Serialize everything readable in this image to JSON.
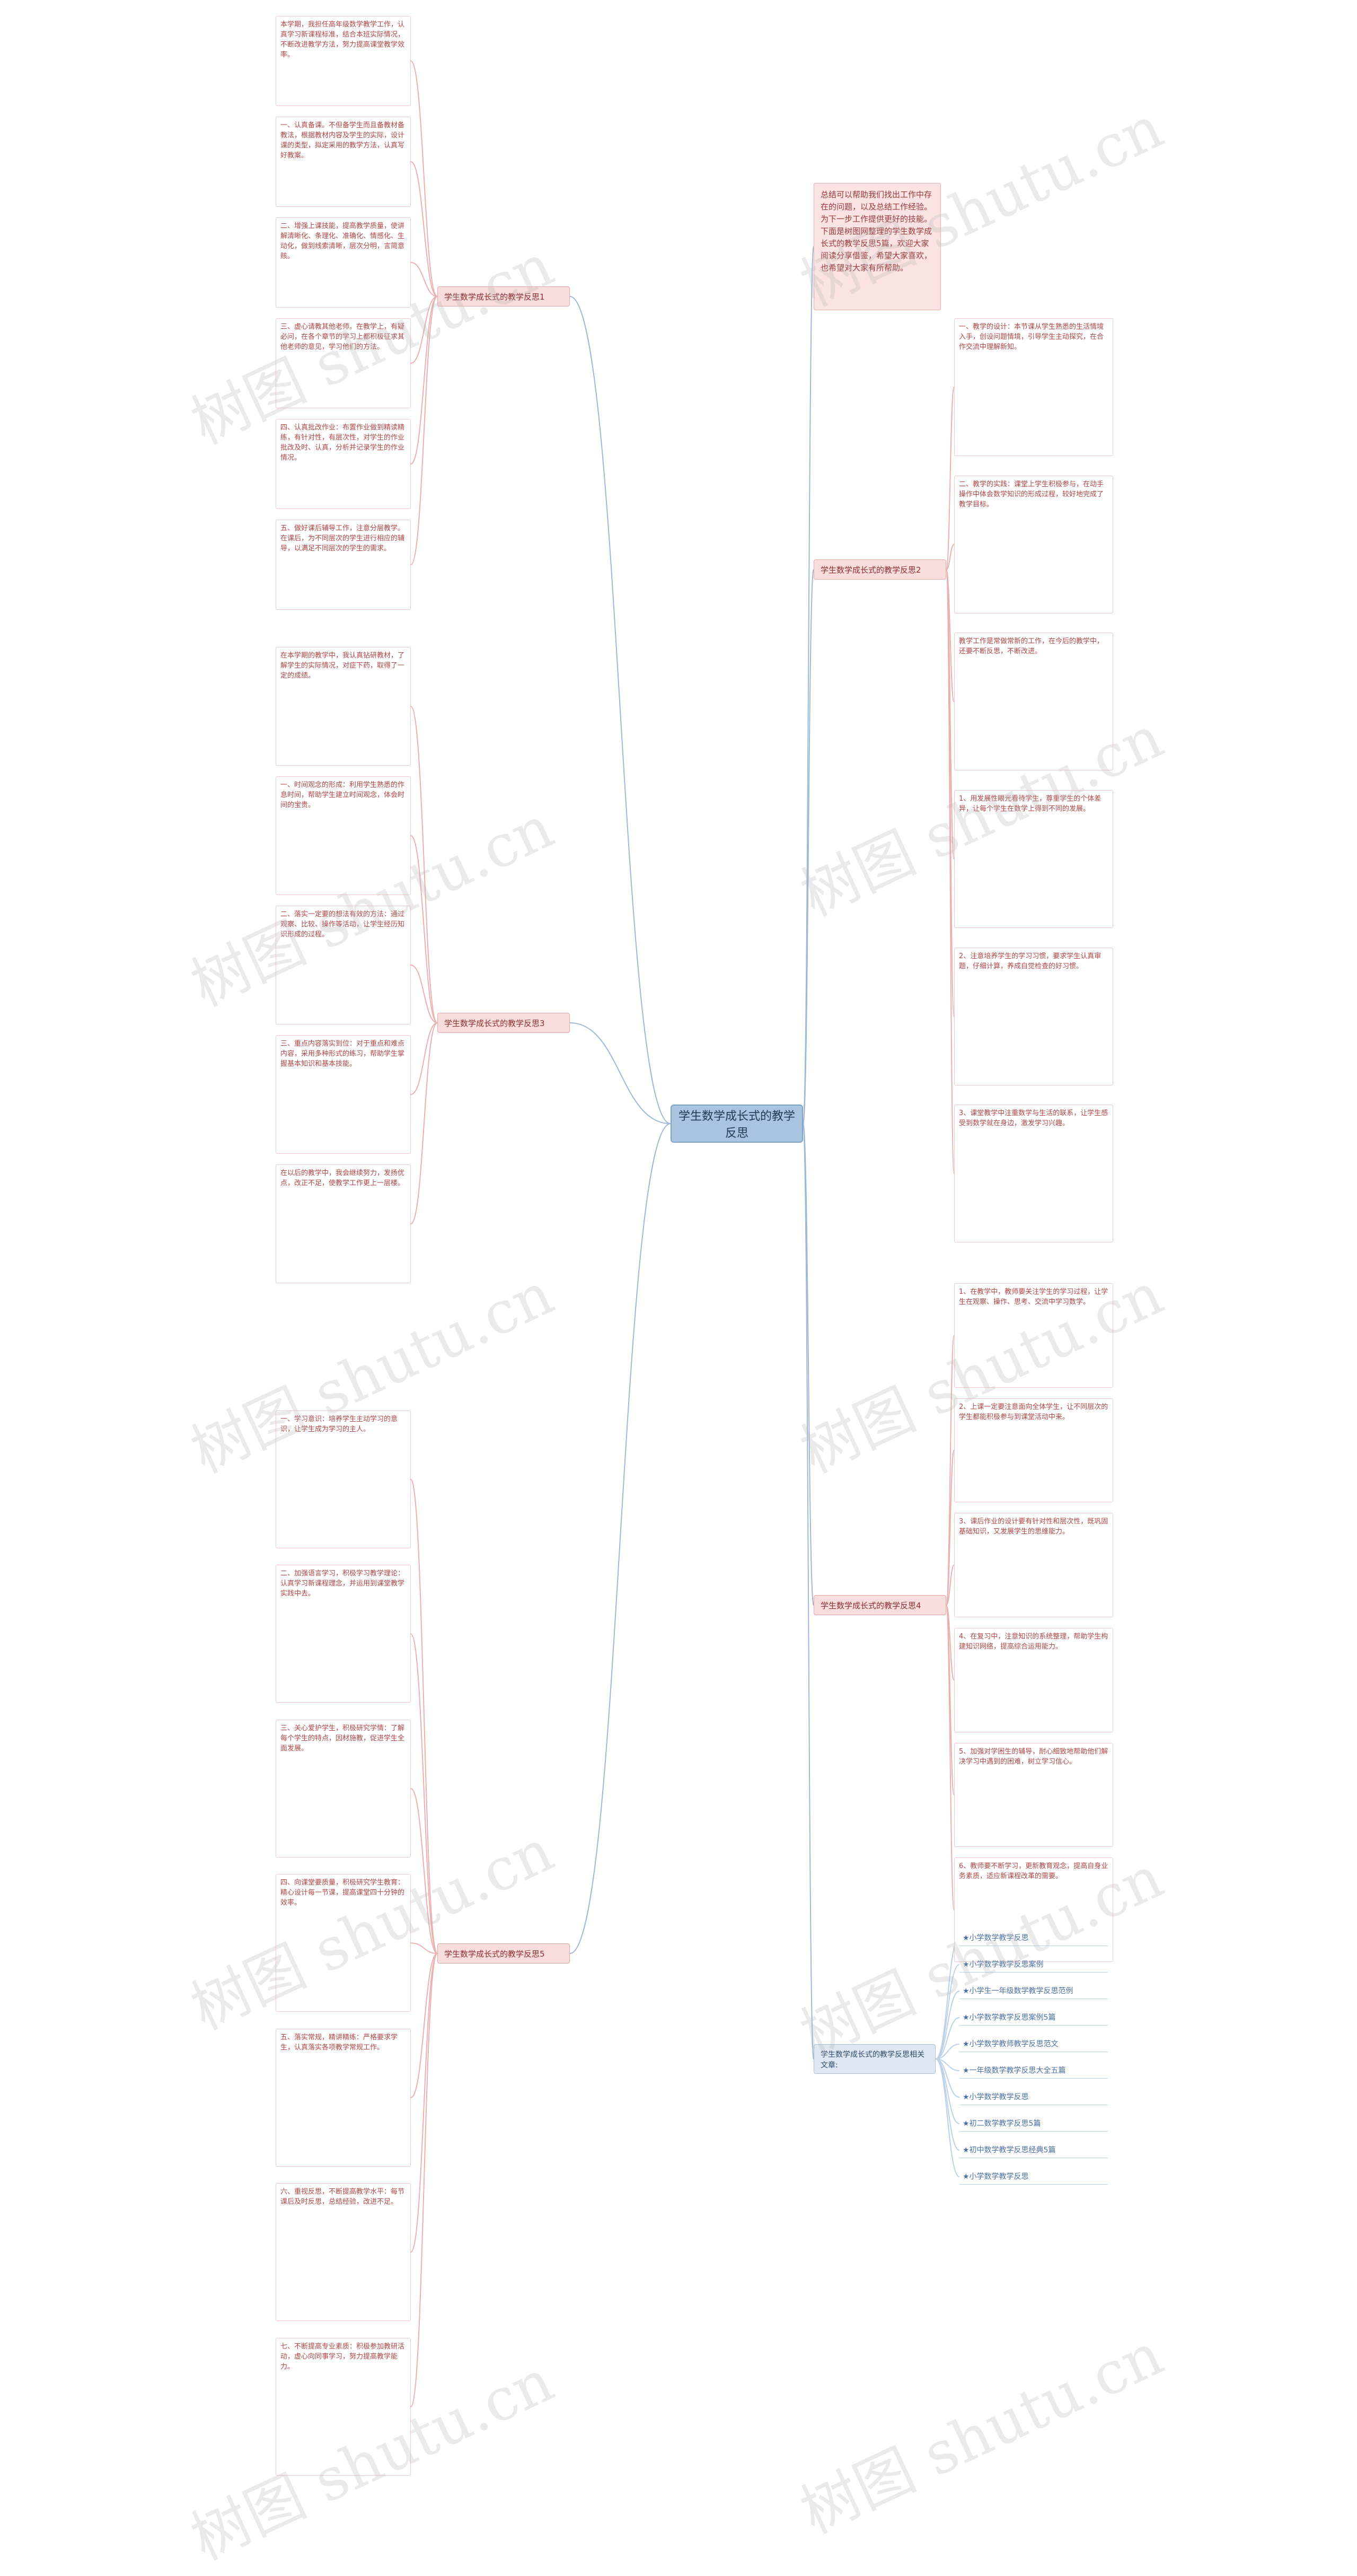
{
  "title": "学生数学成长式的教学反思",
  "summary": "总结可以帮助我们找出工作中存在的问题，以及总结工作经验。为下一步工作提供更好的技能。下面是树图网整理的学生数学成长式的教学反思5篇，欢迎大家阅读分享借鉴，希望大家喜欢，也希望对大家有所帮助。",
  "watermark": "树图 shutu.cn",
  "branches": [
    {
      "label": "学生数学成长式的教学反思1",
      "children": [
        "本学期，我担任高年级数学教学工作，认真学习新课程标准，结合本班实际情况，不断改进教学方法，努力提高课堂教学效率。",
        "一、认真备课。不但备学生而且备教材备教法，根据教材内容及学生的实际，设计课的类型，拟定采用的教学方法，认真写好教案。",
        "二、增强上课技能，提高教学质量，使讲解清晰化、条理化、准确化、情感化、生动化，做到线索清晰，层次分明，言简意赅。",
        "三、虚心请教其他老师。在教学上，有疑必问，在各个章节的学习上都积极征求其他老师的意见，学习他们的方法。",
        "四、认真批改作业：布置作业做到精读精练，有针对性，有层次性，对学生的作业批改及时、认真，分析并记录学生的作业情况。",
        "五、做好课后辅导工作，注意分层教学。在课后，为不同层次的学生进行相应的辅导，以满足不同层次的学生的需求。"
      ]
    },
    {
      "label": "学生数学成长式的教学反思2",
      "children": [
        "一、教学的设计：本节课从学生熟悉的生活情境入手，创设问题情境，引导学生主动探究，在合作交流中理解新知。",
        "二、教学的实践：课堂上学生积极参与，在动手操作中体会数学知识的形成过程，较好地完成了教学目标。",
        "教学工作是常做常新的工作，在今后的教学中，还要不断反思，不断改进。",
        "1、用发展性眼光看待学生，尊重学生的个体差异，让每个学生在数学上得到不同的发展。",
        "2、注意培养学生的学习习惯，要求学生认真审题，仔细计算，养成自觉检查的好习惯。",
        "3、课堂教学中注重数学与生活的联系，让学生感受到数学就在身边，激发学习兴趣。"
      ]
    },
    {
      "label": "学生数学成长式的教学反思3",
      "children": [
        "在本学期的教学中，我认真钻研教材，了解学生的实际情况，对症下药，取得了一定的成绩。",
        "一、时间观念的形成：利用学生熟悉的作息时间，帮助学生建立时间观念，体会时间的宝贵。",
        "二、落实一定要的想法有效的方法：通过观察、比较、操作等活动，让学生经历知识形成的过程。",
        "三、重点内容落实到位：对于重点和难点内容，采用多种形式的练习，帮助学生掌握基本知识和基本技能。",
        "在以后的教学中，我会继续努力，发扬优点，改正不足，使教学工作更上一层楼。"
      ]
    },
    {
      "label": "学生数学成长式的教学反思4",
      "children": [
        "1、在教学中，教师要关注学生的学习过程，让学生在观察、操作、思考、交流中学习数学。",
        "2、上课一定要注意面向全体学生，让不同层次的学生都能积极参与到课堂活动中来。",
        "3、课后作业的设计要有针对性和层次性，既巩固基础知识，又发展学生的思维能力。",
        "4、在复习中，注意知识的系统整理，帮助学生构建知识网络，提高综合运用能力。",
        "5、加强对学困生的辅导，耐心细致地帮助他们解决学习中遇到的困难，树立学习信心。",
        "6、教师要不断学习，更新教育观念，提高自身业务素质，适应新课程改革的需要。"
      ]
    },
    {
      "label": "学生数学成长式的教学反思5",
      "children": [
        "一、学习意识：培养学生主动学习的意识，让学生成为学习的主人。",
        "二、加强语言学习，积极学习教学理论：认真学习新课程理念，并运用到课堂教学实践中去。",
        "三、关心爱护学生，积极研究学情：了解每个学生的特点，因材施教，促进学生全面发展。",
        "四、向课堂要质量，积极研究学生教育：精心设计每一节课，提高课堂四十分钟的效率。",
        "五、落实常规，精讲精练：严格要求学生，认真落实各项教学常规工作。",
        "六、重视反思，不断提高教学水平：每节课后及时反思，总结经验，改进不足。",
        "七、不断提高专业素质：积极参加教研活动，虚心向同事学习，努力提高教学能力。"
      ]
    }
  ],
  "related": {
    "label": "学生数学成长式的教学反思相关文章:",
    "items": [
      "★小学数学教学反思",
      "★小学数学教学反思案例",
      "★小学生一年级数学教学反思范例",
      "★小学数学教学反思案例5篇",
      "★小学数学教师教学反思范文",
      "★一年级数学教学反思大全五篇",
      "★小学数学教学反思",
      "★初二数学教学反思5篇",
      "★初中数学教学反思经典5篇",
      "★小学数学教学反思"
    ]
  }
}
